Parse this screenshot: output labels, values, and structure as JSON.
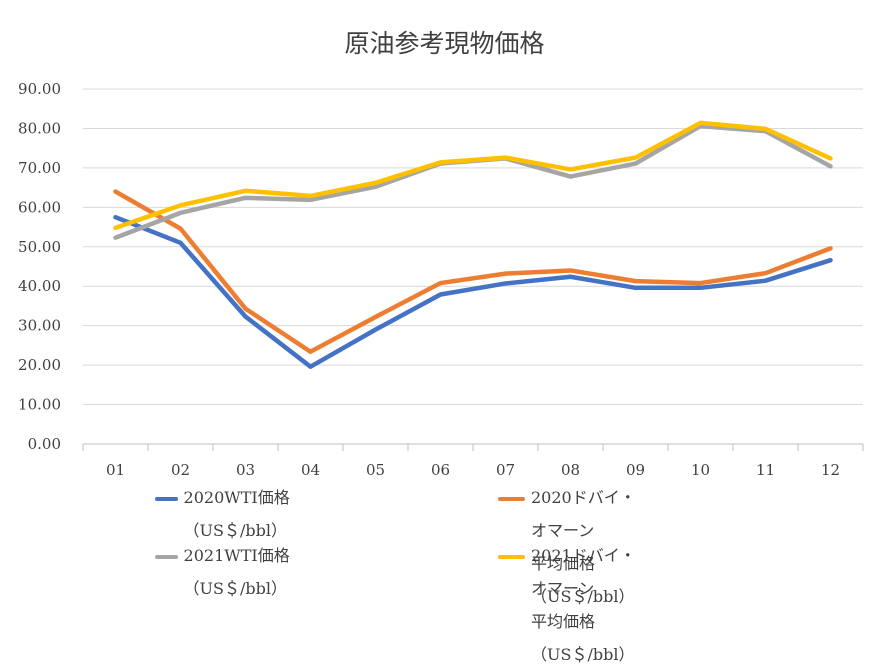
{
  "chart_data": {
    "type": "line",
    "title": "原油参考現物価格",
    "xlabel": "",
    "ylabel": "",
    "categories": [
      "01",
      "02",
      "03",
      "04",
      "05",
      "06",
      "07",
      "08",
      "09",
      "10",
      "11",
      "12"
    ],
    "ylim": [
      0,
      90
    ],
    "yticks": [
      "0.00",
      "10.00",
      "20.00",
      "30.00",
      "40.00",
      "50.00",
      "60.00",
      "70.00",
      "80.00",
      "90.00"
    ],
    "grid": true,
    "legend_position": "bottom",
    "series": [
      {
        "name": "2020WTI価格 （US＄/bbl）",
        "color": "#4472C4",
        "values": [
          57.5,
          51.0,
          32.3,
          19.6,
          29.0,
          37.9,
          40.7,
          42.4,
          39.6,
          39.6,
          41.4,
          46.6
        ]
      },
      {
        "name": "2020ドバイ・オマーン\n平均価格 （US＄/bbl）",
        "color": "#ED7D31",
        "values": [
          64.0,
          54.6,
          34.3,
          23.4,
          32.2,
          40.8,
          43.2,
          44.0,
          41.3,
          40.8,
          43.3,
          49.6
        ]
      },
      {
        "name": "2021WTI価格 （US＄/bbl）",
        "color": "#A5A5A5",
        "values": [
          52.3,
          58.6,
          62.4,
          61.9,
          65.2,
          71.1,
          72.4,
          67.8,
          71.1,
          80.6,
          79.3,
          70.4
        ]
      },
      {
        "name": "2021ドバイ・オマーン\n平均価格 （US＄/bbl）",
        "color": "#FFC000",
        "values": [
          54.8,
          60.5,
          64.2,
          62.9,
          66.2,
          71.4,
          72.6,
          69.6,
          72.6,
          81.4,
          79.9,
          72.4
        ]
      }
    ]
  }
}
